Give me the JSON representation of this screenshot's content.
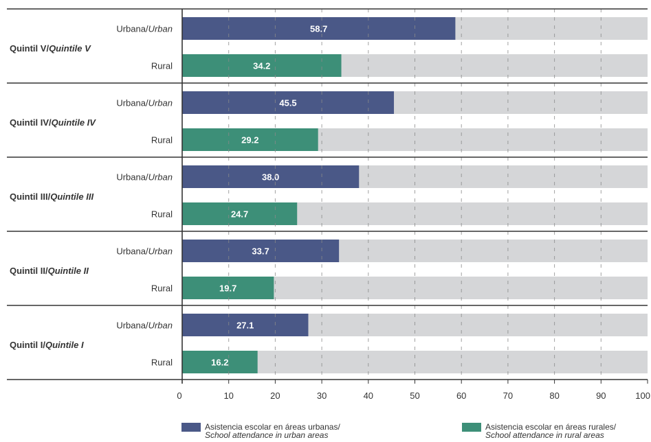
{
  "chart_data": {
    "type": "bar",
    "orientation": "horizontal",
    "xlim": [
      0,
      100
    ],
    "x_ticks": [
      "0",
      "10",
      "20",
      "30",
      "40",
      "50",
      "60",
      "70",
      "80",
      "90",
      "100"
    ],
    "grid": "vertical dashed",
    "groups": [
      {
        "label_es": "Quintil V/",
        "label_en": "Quintile V",
        "bars": [
          {
            "area": "urban",
            "label_es": "Urbana/",
            "label_en": "Urban",
            "value": 58.7,
            "value_label": "58.7"
          },
          {
            "area": "rural",
            "label_es": "Rural",
            "label_en": "",
            "value": 34.2,
            "value_label": "34.2"
          }
        ]
      },
      {
        "label_es": "Quintil IV/",
        "label_en": "Quintile IV",
        "bars": [
          {
            "area": "urban",
            "label_es": "Urbana/",
            "label_en": "Urban",
            "value": 45.5,
            "value_label": "45.5"
          },
          {
            "area": "rural",
            "label_es": "Rural",
            "label_en": "",
            "value": 29.2,
            "value_label": "29.2"
          }
        ]
      },
      {
        "label_es": "Quintil III/",
        "label_en": "Quintile III",
        "bars": [
          {
            "area": "urban",
            "label_es": "Urbana/",
            "label_en": "Urban",
            "value": 38.0,
            "value_label": "38.0"
          },
          {
            "area": "rural",
            "label_es": "Rural",
            "label_en": "",
            "value": 24.7,
            "value_label": "24.7"
          }
        ]
      },
      {
        "label_es": "Quintil II/",
        "label_en": "Quintile II",
        "bars": [
          {
            "area": "urban",
            "label_es": "Urbana/",
            "label_en": "Urban",
            "value": 33.7,
            "value_label": "33.7"
          },
          {
            "area": "rural",
            "label_es": "Rural",
            "label_en": "",
            "value": 19.7,
            "value_label": "19.7"
          }
        ]
      },
      {
        "label_es": "Quintil I/",
        "label_en": "Quintile I",
        "bars": [
          {
            "area": "urban",
            "label_es": "Urbana/",
            "label_en": "Urban",
            "value": 27.1,
            "value_label": "27.1"
          },
          {
            "area": "rural",
            "label_es": "Rural",
            "label_en": "",
            "value": 16.2,
            "value_label": "16.2"
          }
        ]
      }
    ],
    "legend": {
      "placement": "bottom",
      "urban": {
        "line1": "Asistencia escolar en áreas urbanas/",
        "line2": "School  attendance in urban areas"
      },
      "rural": {
        "line1": "Asistencia escolar en áreas rurales/",
        "line2": "School  attendance in rural areas"
      }
    }
  },
  "colors": {
    "urban": "#4a5887",
    "rural": "#3d8f78",
    "track": "#d5d6d8",
    "axis": "#333333",
    "text": "#333333",
    "bar_label": "#ffffff"
  }
}
